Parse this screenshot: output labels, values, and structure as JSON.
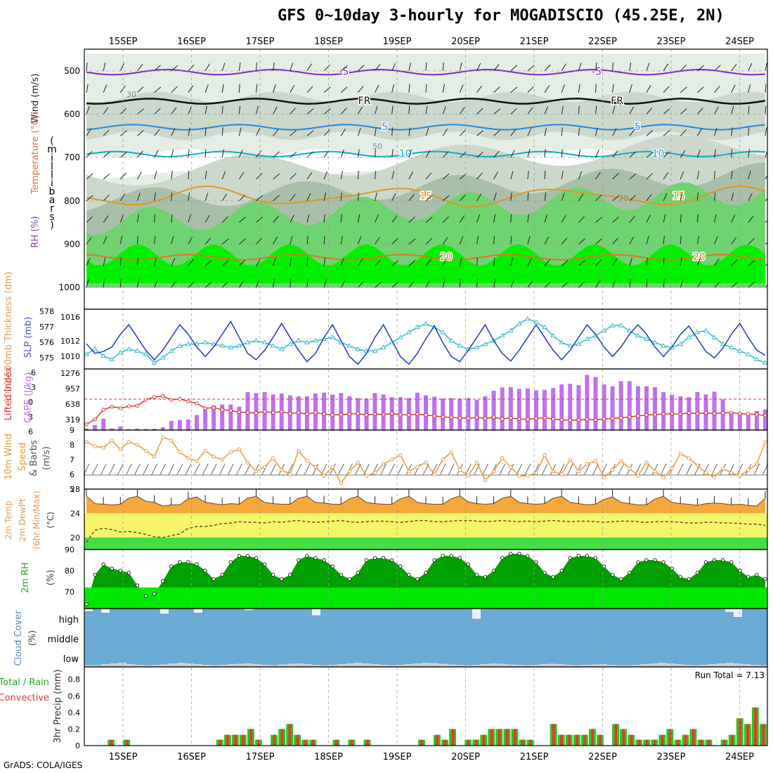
{
  "title": "GFS 0~10day 3-hourly for MOGADISCIO (45.25E, 2N)",
  "credit": "GrADS: COLA/IGES",
  "colors": {
    "rh_light": "#e4eee4",
    "rh_mid": "#cbd8cb",
    "rh_dark": "#a9bfa9",
    "rh_green": "#6fd36f",
    "rh_bright": "#00f000",
    "slp": "#1a3ccc",
    "thickness": "#33bbcc",
    "lifted": "#dd3333",
    "cape": "#c070ee",
    "wind": "#e89a3c",
    "temp_fill": "#f6a83a",
    "dew_fill": "#f5f56a",
    "green_band": "#44dd44",
    "rh2m_dark": "#00a000",
    "rh2m_bright": "#00ee00",
    "cloud": "#6aaad5",
    "cloud_white": "#f2f0f6",
    "rain": "#22cc22",
    "conv": "#ee3333"
  },
  "chart_data": [
    {
      "id": "upper_air",
      "type": "contour-heatmap",
      "dates": [
        "15SEP",
        "16SEP",
        "17SEP",
        "18SEP",
        "19SEP",
        "20SEP",
        "21SEP",
        "22SEP",
        "23SEP",
        "24SEP"
      ],
      "ylabel": "(millibars)",
      "ylabel_chars": [
        "(",
        "m",
        "i",
        "l",
        "l",
        "i",
        "b",
        "a",
        "r",
        "s",
        ")"
      ],
      "legend_labels": [
        "Wind (m/s)",
        "Temperature (°C)",
        "RH (%)"
      ],
      "pressure_ticks": [
        "500",
        "600",
        "700",
        "800",
        "900",
        "1000"
      ],
      "isotherms": [
        {
          "label": "-5",
          "level_mb": 503
        },
        {
          "label": "FR",
          "level_mb": 570
        },
        {
          "label": "5",
          "level_mb": 630
        },
        {
          "label": "10",
          "level_mb": 692
        },
        {
          "label": "15",
          "level_mb": 790
        },
        {
          "label": "20",
          "level_mb": 930
        }
      ],
      "rh_labels": [
        "30",
        "50",
        "70"
      ]
    },
    {
      "id": "slp_thickness",
      "type": "line",
      "ylabel_left": "1000-500mb Thickness (dm)",
      "ylabel_right": "SLP (mb)",
      "thickness_ticks": [
        "578",
        "577",
        "576",
        "575"
      ],
      "slp_ticks": [
        "1016",
        "1012",
        "1010"
      ],
      "slp_range": [
        1009.5,
        1018
      ],
      "slp": [
        1013.0,
        1011.5,
        1011.8,
        1012.5,
        1014.5,
        1016.0,
        1014.0,
        1012.0,
        1010.5,
        1012.0,
        1014.0,
        1016.0,
        1014.5,
        1012.5,
        1011.0,
        1012.5,
        1014.5,
        1016.5,
        1014.0,
        1011.5,
        1010.5,
        1012.0,
        1014.0,
        1016.2,
        1014.0,
        1012.0,
        1010.2,
        1011.5,
        1014.0,
        1016.0,
        1013.5,
        1011.0,
        1009.8,
        1011.5,
        1014.0,
        1016.0,
        1013.5,
        1011.0,
        1009.8,
        1011.5,
        1013.8,
        1015.8,
        1013.2,
        1011.0,
        1010.2,
        1012.0,
        1014.0,
        1016.0,
        1013.5,
        1011.5,
        1010.3,
        1012.0,
        1014.0,
        1016.0,
        1014.0,
        1012.0,
        1010.5,
        1012.0,
        1014.0,
        1016.0,
        1014.5,
        1012.5,
        1011.0,
        1012.5,
        1014.5,
        1016.0,
        1014.5,
        1012.5,
        1011.0,
        1012.5,
        1014.5,
        1015.8,
        1013.8,
        1011.8,
        1010.8,
        1012.3,
        1014.5,
        1016.2,
        1014.0,
        1012.0,
        1011.2
      ],
      "thickness": [
        575.5,
        575.8,
        575.4,
        575.2,
        575.6,
        575.8,
        575.7,
        575.5,
        575.0,
        575.3,
        575.7,
        576.0,
        576.1,
        576.1,
        576.2,
        576.1,
        576.0,
        575.9,
        576.0,
        576.2,
        576.3,
        576.2,
        576.0,
        575.8,
        576.1,
        576.3,
        576.2,
        576.3,
        576.4,
        576.5,
        576.2,
        576.0,
        575.8,
        575.7,
        575.7,
        575.9,
        576.2,
        576.5,
        576.8,
        577.1,
        577.3,
        577.1,
        576.8,
        576.3,
        576.0,
        575.8,
        575.9,
        576.1,
        576.3,
        576.6,
        576.9,
        577.3,
        577.6,
        577.4,
        577.1,
        576.6,
        576.2,
        576.0,
        576.1,
        576.4,
        576.6,
        576.9,
        577.2,
        577.2,
        576.9,
        576.6,
        576.4,
        576.2,
        576.0,
        575.9,
        576.1,
        576.5,
        576.8,
        576.9,
        576.5,
        576.1,
        575.9,
        575.7,
        575.5,
        575.2,
        575.0
      ]
    },
    {
      "id": "cape_li",
      "type": "bar+line",
      "ylabel_left": "Lifted Index",
      "ylabel_right": "CAPE (J/kg)",
      "li_ticks": [
        "-6",
        "-3",
        "0",
        "3",
        "6"
      ],
      "cape_ticks": [
        "1276",
        "957",
        "638",
        "319"
      ],
      "cape_max": 1276,
      "cape": [
        30,
        110,
        250,
        40,
        80,
        20,
        30,
        25,
        30,
        60,
        200,
        220,
        230,
        330,
        450,
        540,
        560,
        560,
        510,
        830,
        810,
        830,
        780,
        800,
        760,
        740,
        740,
        800,
        820,
        780,
        810,
        740,
        700,
        690,
        810,
        780,
        720,
        720,
        700,
        820,
        760,
        730,
        690,
        700,
        690,
        700,
        660,
        740,
        860,
        930,
        940,
        900,
        910,
        870,
        880,
        920,
        1000,
        1010,
        980,
        1210,
        1160,
        1000,
        960,
        1070,
        1070,
        960,
        960,
        940,
        830,
        770,
        740,
        720,
        830,
        780,
        840,
        670,
        400,
        340,
        330,
        420,
        450
      ],
      "li": [
        -4.8,
        -3.8,
        -1.8,
        -1.2,
        -1.5,
        -1.1,
        -1.0,
        0.2,
        0.8,
        1.0,
        0.2,
        0.4,
        -0.1,
        -0.5,
        -1.5,
        -1.4,
        -1.8,
        -2.0,
        -2.3,
        -2.4,
        -2.5,
        -2.2,
        -2.4,
        -2.2,
        -2.6,
        -2.4,
        -2.7,
        -2.4,
        -2.7,
        -2.9,
        -2.8,
        -2.7,
        -2.6,
        -2.9,
        -2.7,
        -2.8,
        -2.6,
        -2.8,
        -2.9,
        -2.7,
        -2.9,
        -3.1,
        -3.3,
        -3.4,
        -3.5,
        -3.6,
        -3.4,
        -3.6,
        -3.4,
        -3.7,
        -3.5,
        -3.7,
        -3.8,
        -3.6,
        -3.5,
        -3.7,
        -3.9,
        -4.0,
        -3.9,
        -3.8,
        -3.9,
        -3.7,
        -3.6,
        -3.5,
        -3.3,
        -3.1,
        -2.9,
        -2.8,
        -2.7,
        -2.6,
        -2.7,
        -2.5,
        -2.6,
        -2.5,
        -2.6,
        -2.5,
        -2.4,
        -2.6,
        -2.7,
        -2.8,
        -3.0
      ]
    },
    {
      "id": "wind10m",
      "type": "line",
      "ylabel": [
        "10m Wind",
        "Speed",
        "& Barbs",
        "(m/s)"
      ],
      "ticks": [
        "9",
        "8",
        "7",
        "6",
        "5"
      ],
      "range": [
        5,
        9
      ],
      "speed": [
        8.2,
        7.9,
        7.8,
        8.3,
        7.7,
        8.2,
        8.0,
        7.6,
        7.2,
        8.5,
        8.3,
        7.5,
        7.1,
        6.9,
        7.6,
        7.2,
        7.0,
        7.5,
        7.7,
        6.8,
        6.2,
        6.5,
        7.1,
        6.3,
        6.0,
        7.6,
        6.9,
        6.5,
        5.9,
        6.5,
        5.4,
        6.2,
        6.8,
        5.9,
        6.1,
        6.7,
        7.0,
        7.3,
        6.2,
        6.5,
        6.8,
        6.0,
        7.0,
        7.5,
        6.3,
        5.9,
        6.8,
        5.6,
        6.2,
        7.1,
        6.5,
        5.9,
        5.9,
        6.1,
        7.3,
        6.2,
        6.0,
        7.0,
        6.2,
        6.7,
        6.9,
        5.8,
        6.3,
        6.9,
        6.4,
        5.9,
        6.8,
        6.2,
        5.8,
        6.4,
        7.4,
        7.1,
        6.6,
        6.1,
        5.8,
        6.4,
        6.1,
        5.9,
        6.3,
        6.7,
        8.2
      ]
    },
    {
      "id": "temp2m",
      "type": "area",
      "ylabel": [
        "2m Temp",
        "2m DewPt",
        "(6hr Min/Max)",
        "(°C)"
      ],
      "ticks": [
        "28",
        "24",
        "20"
      ],
      "range": [
        18,
        28
      ],
      "temp": [
        26.8,
        25.6,
        25.5,
        25.4,
        25.5,
        26.5,
        26.8,
        26.0,
        25.8,
        25.2,
        25.4,
        25.4,
        26.4,
        26.7,
        25.8,
        25.6,
        25.4,
        25.6,
        25.5,
        26.5,
        26.8,
        25.8,
        25.6,
        25.5,
        25.5,
        26.5,
        26.8,
        25.8,
        25.7,
        25.5,
        25.5,
        26.4,
        26.8,
        25.8,
        25.6,
        25.5,
        25.5,
        26.4,
        26.8,
        25.8,
        25.6,
        25.5,
        25.5,
        26.4,
        26.9,
        25.9,
        25.6,
        25.5,
        25.6,
        26.5,
        26.8,
        25.8,
        25.6,
        25.5,
        25.6,
        26.5,
        26.8,
        25.8,
        25.6,
        25.4,
        25.5,
        26.3,
        26.7,
        25.8,
        25.6,
        25.4,
        25.4,
        26.4,
        26.8,
        25.8,
        25.6,
        25.5,
        25.3,
        25.6,
        25.7,
        25.6,
        25.4,
        25.5,
        25.3,
        25.2,
        26.5
      ],
      "dewpt": [
        19.2,
        21.2,
        21.5,
        21.3,
        20.9,
        21.0,
        20.8,
        20.5,
        20.1,
        20.0,
        20.3,
        20.6,
        21.5,
        21.8,
        21.8,
        22.0,
        22.3,
        22.4,
        22.6,
        22.5,
        22.5,
        22.4,
        22.6,
        22.5,
        22.7,
        22.8,
        22.6,
        22.5,
        22.6,
        22.7,
        22.8,
        22.6,
        22.5,
        22.6,
        22.7,
        22.7,
        22.6,
        22.5,
        22.6,
        22.8,
        22.8,
        22.6,
        22.6,
        22.7,
        22.8,
        22.8,
        22.7,
        22.6,
        22.7,
        22.8,
        22.7,
        22.6,
        22.7,
        22.6,
        22.7,
        22.8,
        22.7,
        22.6,
        22.7,
        22.7,
        22.6,
        22.5,
        22.6,
        22.7,
        22.7,
        22.6,
        22.5,
        22.6,
        22.6,
        22.6,
        22.5,
        22.4,
        22.4,
        22.5,
        22.5,
        22.4,
        22.4,
        22.3,
        22.2,
        22.2,
        22.0
      ]
    },
    {
      "id": "rh2m",
      "type": "area",
      "ylabel": [
        "2m RH",
        "(%)"
      ],
      "ticks": [
        "90",
        "80",
        "70"
      ],
      "range": [
        62,
        90
      ],
      "values": [
        64,
        78,
        83,
        81,
        80,
        79,
        73,
        68,
        69,
        75,
        82,
        84,
        84,
        83,
        80,
        76,
        78,
        84,
        87,
        87,
        86,
        83,
        78,
        76,
        78,
        85,
        87,
        86,
        85,
        82,
        78,
        76,
        79,
        85,
        86,
        86,
        85,
        82,
        78,
        76,
        79,
        85,
        87,
        87,
        86,
        83,
        78,
        77,
        80,
        86,
        88,
        88,
        87,
        84,
        79,
        77,
        80,
        86,
        87,
        87,
        86,
        82,
        78,
        76,
        79,
        84,
        85,
        85,
        84,
        81,
        77,
        76,
        79,
        84,
        85,
        85,
        84,
        80,
        77,
        78,
        76
      ]
    },
    {
      "id": "cloud",
      "type": "area",
      "ylabel": [
        "Cloud Cover",
        "(%)"
      ],
      "levels": [
        "high",
        "middle",
        "low"
      ],
      "high": [
        85,
        100,
        75,
        100,
        100,
        100,
        100,
        100,
        100,
        70,
        100,
        100,
        100,
        75,
        100,
        100,
        100,
        100,
        100,
        90,
        100,
        100,
        100,
        100,
        100,
        100,
        100,
        60,
        100,
        100,
        100,
        100,
        100,
        100,
        100,
        100,
        100,
        100,
        100,
        100,
        100,
        100,
        100,
        100,
        100,
        100,
        40,
        100,
        100,
        100,
        100,
        100,
        100,
        100,
        100,
        100,
        100,
        100,
        100,
        100,
        100,
        100,
        100,
        100,
        100,
        100,
        100,
        100,
        100,
        100,
        100,
        100,
        100,
        100,
        100,
        100,
        80,
        50,
        100,
        100,
        100
      ],
      "low": [
        5,
        5,
        8,
        10,
        12,
        8,
        6,
        5,
        6,
        7,
        10,
        12,
        10,
        8,
        6,
        5,
        6,
        8,
        9,
        10,
        8,
        6,
        5,
        7,
        9,
        10,
        8,
        6,
        5,
        6,
        8,
        10,
        12,
        10,
        8,
        6,
        5,
        6,
        8,
        10,
        12,
        11,
        9,
        7,
        6,
        5,
        6,
        8,
        10,
        9,
        7,
        6,
        5,
        6,
        8,
        9,
        8,
        6,
        5,
        6,
        7,
        8,
        6,
        5,
        5,
        6,
        8,
        10,
        12,
        10,
        8,
        6,
        5,
        6,
        8,
        10,
        12,
        10,
        8,
        6,
        5
      ]
    },
    {
      "id": "precip",
      "type": "bar",
      "ylabel_left": [
        "Total / Rain",
        "Convective"
      ],
      "ylabel_right": "3hr Precip (mm)",
      "ticks": [
        "0.8",
        "0.6",
        "0.4",
        "0.2",
        "0"
      ],
      "range": [
        0,
        0.95
      ],
      "run_total_label": "Run Total = 7.13",
      "total": [
        0,
        0,
        0,
        0.07,
        0,
        0.07,
        0,
        0,
        0,
        0,
        0,
        0,
        0,
        0,
        0,
        0,
        0,
        0.07,
        0.13,
        0.13,
        0.13,
        0.2,
        0.07,
        0,
        0.13,
        0.2,
        0.26,
        0.13,
        0.07,
        0.07,
        0,
        0,
        0.07,
        0,
        0.07,
        0,
        0.07,
        0,
        0,
        0,
        0,
        0,
        0,
        0.07,
        0,
        0.13,
        0.07,
        0.2,
        0,
        0.07,
        0.07,
        0.13,
        0.2,
        0.2,
        0.2,
        0.2,
        0.07,
        0.07,
        0,
        0,
        0.26,
        0.13,
        0.13,
        0.13,
        0.13,
        0.2,
        0.13,
        0,
        0.26,
        0.2,
        0.13,
        0.07,
        0.07,
        0.07,
        0.13,
        0.2,
        0.07,
        0.13,
        0.2,
        0.07,
        0.07,
        0,
        0.07,
        0.13,
        0.33,
        0.26,
        0.46,
        0.26
      ],
      "dates_bottom": [
        "15SEP",
        "16SEP",
        "17SEP",
        "18SEP",
        "19SEP",
        "20SEP",
        "21SEP",
        "22SEP",
        "23SEP",
        "24SEP"
      ]
    }
  ]
}
